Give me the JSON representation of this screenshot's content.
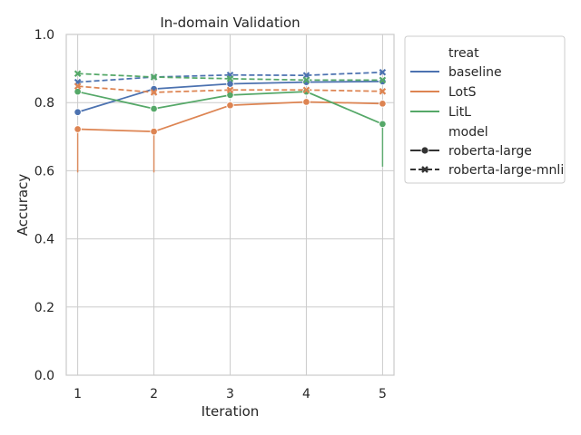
{
  "chart_data": {
    "type": "line",
    "title": "In-domain Validation",
    "xlabel": "Iteration",
    "ylabel": "Accuracy",
    "x": [
      1,
      2,
      3,
      4,
      5
    ],
    "xlim": [
      0.85,
      5.15
    ],
    "ylim": [
      0.0,
      1.0
    ],
    "yticks": [
      "0.0",
      "0.2",
      "0.4",
      "0.6",
      "0.8",
      "1.0"
    ],
    "xticks": [
      "1",
      "2",
      "3",
      "4",
      "5"
    ],
    "grid": true,
    "legend_position": "outside-right",
    "legend": {
      "hue_title": "treat",
      "style_title": "model",
      "treat_entries": [
        {
          "label": "baseline",
          "color": "#4c72b0"
        },
        {
          "label": "LotS",
          "color": "#dd8452"
        },
        {
          "label": "LitL",
          "color": "#55a868"
        }
      ],
      "model_entries": [
        {
          "label": "roberta-large",
          "marker": "circle",
          "dash": "solid"
        },
        {
          "label": "roberta-large-mnli",
          "marker": "x",
          "dash": "dashed"
        }
      ]
    },
    "series": [
      {
        "treat": "baseline",
        "model": "roberta-large",
        "color": "#4c72b0",
        "marker": "circle",
        "dash": "solid",
        "values": [
          0.772,
          0.84,
          0.855,
          0.86,
          0.862
        ],
        "ci_low": [
          0.772,
          0.84,
          0.855,
          0.86,
          0.862
        ]
      },
      {
        "treat": "LotS",
        "model": "roberta-large",
        "color": "#dd8452",
        "marker": "circle",
        "dash": "solid",
        "values": [
          0.722,
          0.715,
          0.792,
          0.802,
          0.797
        ],
        "ci_low": [
          0.595,
          0.595,
          0.792,
          0.802,
          0.797
        ]
      },
      {
        "treat": "LitL",
        "model": "roberta-large",
        "color": "#55a868",
        "marker": "circle",
        "dash": "solid",
        "values": [
          0.832,
          0.782,
          0.822,
          0.832,
          0.737
        ],
        "ci_low": [
          0.832,
          0.782,
          0.822,
          0.832,
          0.612
        ]
      },
      {
        "treat": "baseline",
        "model": "roberta-large-mnli",
        "color": "#4c72b0",
        "marker": "x",
        "dash": "dashed",
        "values": [
          0.86,
          0.875,
          0.881,
          0.88,
          0.889
        ],
        "ci_low": [
          0.86,
          0.875,
          0.881,
          0.88,
          0.889
        ]
      },
      {
        "treat": "LotS",
        "model": "roberta-large-mnli",
        "color": "#dd8452",
        "marker": "x",
        "dash": "dashed",
        "values": [
          0.848,
          0.83,
          0.837,
          0.837,
          0.833
        ],
        "ci_low": [
          0.848,
          0.83,
          0.837,
          0.837,
          0.833
        ]
      },
      {
        "treat": "LitL",
        "model": "roberta-large-mnli",
        "color": "#55a868",
        "marker": "x",
        "dash": "dashed",
        "values": [
          0.885,
          0.875,
          0.87,
          0.866,
          0.866
        ],
        "ci_low": [
          0.885,
          0.875,
          0.87,
          0.866,
          0.866
        ]
      }
    ]
  }
}
